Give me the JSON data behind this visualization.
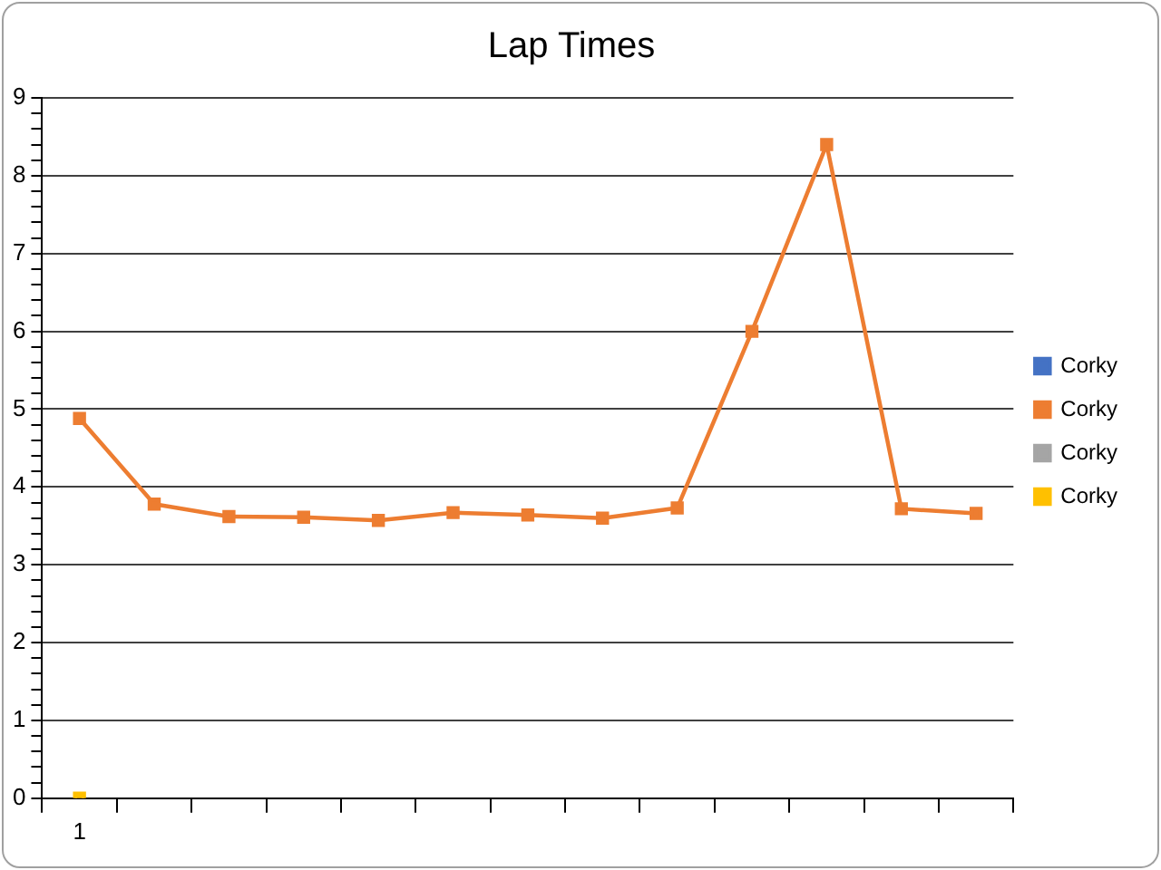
{
  "chart_data": {
    "type": "line",
    "title": "Lap Times",
    "categories": [
      "1",
      null,
      null,
      null,
      null,
      null,
      null,
      null,
      null,
      null,
      null,
      null,
      null
    ],
    "series": [
      {
        "name": "Corky",
        "color": "#4472c4",
        "values": [
          null,
          null,
          null,
          null,
          null,
          null,
          null,
          null,
          null,
          null,
          null,
          null,
          null
        ]
      },
      {
        "name": "Corky",
        "color": "#ed7d31",
        "values": [
          4.88,
          3.78,
          3.62,
          3.61,
          3.57,
          3.67,
          3.64,
          3.6,
          3.73,
          6.0,
          8.4,
          3.72,
          3.66
        ]
      },
      {
        "name": "Corky",
        "color": "#a5a5a5",
        "values": [
          null,
          null,
          null,
          null,
          null,
          null,
          null,
          null,
          null,
          null,
          null,
          null,
          null
        ]
      },
      {
        "name": "Corky",
        "color": "#ffc000",
        "values": [
          0,
          null,
          null,
          null,
          null,
          null,
          null,
          null,
          null,
          null,
          null,
          null,
          null
        ]
      }
    ],
    "ylim": [
      0,
      9
    ],
    "yticks": [
      0,
      {
        "value": 0.2,
        "label": null
      },
      {
        "value": 0.4,
        "label": null
      },
      {
        "value": 0.6,
        "label": null
      },
      {
        "value": 0.8,
        "label": null
      },
      1,
      {
        "value": 1.2,
        "label": null
      },
      {
        "value": 1.4,
        "label": null
      },
      {
        "value": 1.6,
        "label": null
      },
      {
        "value": 1.8,
        "label": null
      },
      2,
      {
        "value": 2.2,
        "label": null
      },
      {
        "value": 2.4,
        "label": null
      },
      {
        "value": 2.6,
        "label": null
      },
      {
        "value": 2.8,
        "label": null
      },
      3,
      {
        "value": 3.2,
        "label": null
      },
      {
        "value": 3.4,
        "label": null
      },
      {
        "value": 3.6,
        "label": null
      },
      {
        "value": 3.8,
        "label": null
      },
      4,
      {
        "value": 4.2,
        "label": null
      },
      {
        "value": 4.4,
        "label": null
      },
      {
        "value": 4.6,
        "label": null
      },
      {
        "value": 4.8,
        "label": null
      },
      5,
      {
        "value": 5.2,
        "label": null
      },
      {
        "value": 5.4,
        "label": null
      },
      {
        "value": 5.6,
        "label": null
      },
      {
        "value": 5.8,
        "label": null
      },
      6,
      {
        "value": 6.2,
        "label": null
      },
      {
        "value": 6.4,
        "label": null
      },
      {
        "value": 6.6,
        "label": null
      },
      {
        "value": 6.8,
        "label": null
      },
      7,
      {
        "value": 7.2,
        "label": null
      },
      {
        "value": 7.4,
        "label": null
      },
      {
        "value": 7.6,
        "label": null
      },
      {
        "value": 7.8,
        "label": null
      },
      8,
      {
        "value": 8.2,
        "label": null
      },
      {
        "value": 8.4,
        "label": null
      },
      {
        "value": 8.6,
        "label": null
      },
      {
        "value": 8.8,
        "label": null
      },
      9
    ],
    "grid": "y",
    "legend": "right",
    "marker": "square",
    "line_style": "solid"
  }
}
